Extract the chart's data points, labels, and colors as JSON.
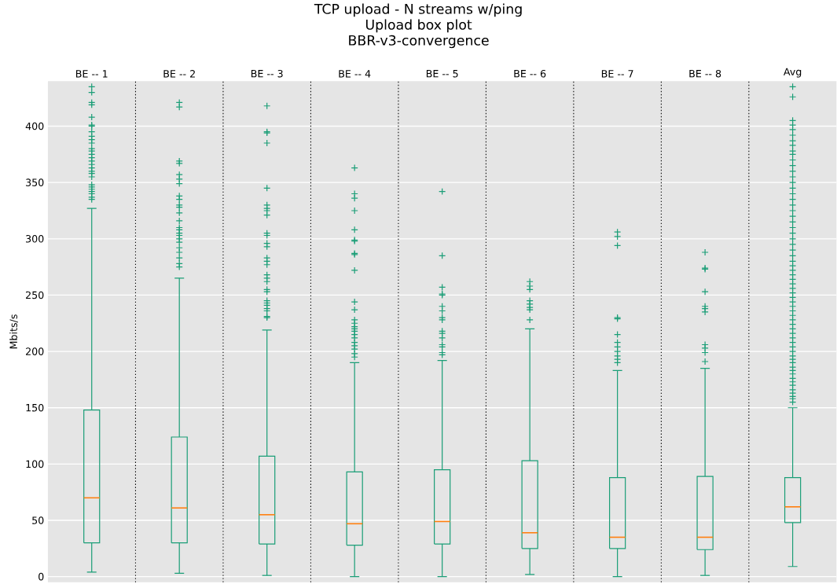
{
  "chart_data": {
    "type": "box",
    "title": "TCP upload - N streams w/ping",
    "subtitle": "Upload box plot",
    "annotations": [
      "BBR-v3-convergence"
    ],
    "ylabel": "Mbits/s",
    "categories": [
      "BE -- 1",
      "BE -- 2",
      "BE -- 3",
      "BE -- 4",
      "BE -- 5",
      "BE -- 6",
      "BE -- 7",
      "BE -- 8",
      "Avg"
    ],
    "ylim": [
      -5,
      440
    ],
    "yticks": [
      0,
      50,
      100,
      150,
      200,
      250,
      300,
      350,
      400
    ],
    "grid": "y",
    "marker": "cross",
    "series": [
      {
        "color": "#1b9e77",
        "boxes": [
          {
            "low": 4,
            "q1": 30,
            "median": 70,
            "q3": 148,
            "high": 327,
            "outliers": [
              335,
              337,
              340,
              342,
              344,
              346,
              348,
              355,
              358,
              360,
              363,
              366,
              369,
              372,
              375,
              378,
              380,
              385,
              388,
              391,
              395,
              400,
              401,
              408,
              419,
              421,
              430,
              435
            ]
          },
          {
            "low": 3,
            "q1": 30,
            "median": 61,
            "q3": 124,
            "high": 265,
            "outliers": [
              275,
              278,
              283,
              288,
              292,
              297,
              300,
              303,
              305,
              308,
              310,
              316,
              323,
              328,
              330,
              335,
              338,
              349,
              353,
              357,
              367,
              369,
              417,
              421
            ]
          },
          {
            "low": 1,
            "q1": 29,
            "median": 55,
            "q3": 107,
            "high": 219,
            "outliers": [
              230,
              231,
              236,
              238,
              241,
              243,
              245,
              253,
              255,
              262,
              265,
              268,
              277,
              280,
              283,
              293,
              296,
              303,
              305,
              321,
              325,
              327,
              330,
              345,
              385,
              394,
              395,
              418
            ]
          },
          {
            "low": 0,
            "q1": 28,
            "median": 47,
            "q3": 93,
            "high": 190,
            "outliers": [
              195,
              198,
              202,
              205,
              208,
              212,
              215,
              218,
              220,
              222,
              225,
              228,
              237,
              244,
              272,
              286,
              287,
              298,
              299,
              308,
              325,
              336,
              340,
              363
            ]
          },
          {
            "low": 0,
            "q1": 29,
            "median": 49,
            "q3": 95,
            "high": 192,
            "outliers": [
              197,
              199,
              204,
              206,
              212,
              216,
              218,
              228,
              230,
              236,
              240,
              250,
              251,
              257,
              285,
              342
            ]
          },
          {
            "low": 2,
            "q1": 25,
            "median": 39,
            "q3": 103,
            "high": 220,
            "outliers": [
              228,
              237,
              239,
              242,
              245,
              255,
              258,
              262
            ]
          },
          {
            "low": 0,
            "q1": 25,
            "median": 35,
            "q3": 88,
            "high": 183,
            "outliers": [
              190,
              193,
              196,
              200,
              204,
              208,
              215,
              229,
              230,
              294,
              302,
              306
            ]
          },
          {
            "low": 1,
            "q1": 24,
            "median": 35,
            "q3": 89,
            "high": 185,
            "outliers": [
              191,
              199,
              203,
              206,
              235,
              238,
              240,
              253,
              273,
              274,
              288
            ]
          },
          {
            "low": 9,
            "q1": 48,
            "median": 62,
            "q3": 88,
            "high": 150,
            "outliers": [
              155,
              158,
              160,
              163,
              166,
              170,
              173,
              176,
              180,
              183,
              186,
              190,
              193,
              196,
              200,
              204,
              208,
              212,
              216,
              220,
              224,
              228,
              232,
              236,
              240,
              244,
              248,
              252,
              256,
              260,
              264,
              268,
              272,
              276,
              280,
              285,
              290,
              295,
              300,
              305,
              310,
              315,
              320,
              325,
              330,
              335,
              340,
              345,
              350,
              355,
              360,
              365,
              370,
              375,
              378,
              383,
              387,
              392,
              397,
              401,
              405,
              426,
              435
            ]
          }
        ]
      }
    ]
  }
}
